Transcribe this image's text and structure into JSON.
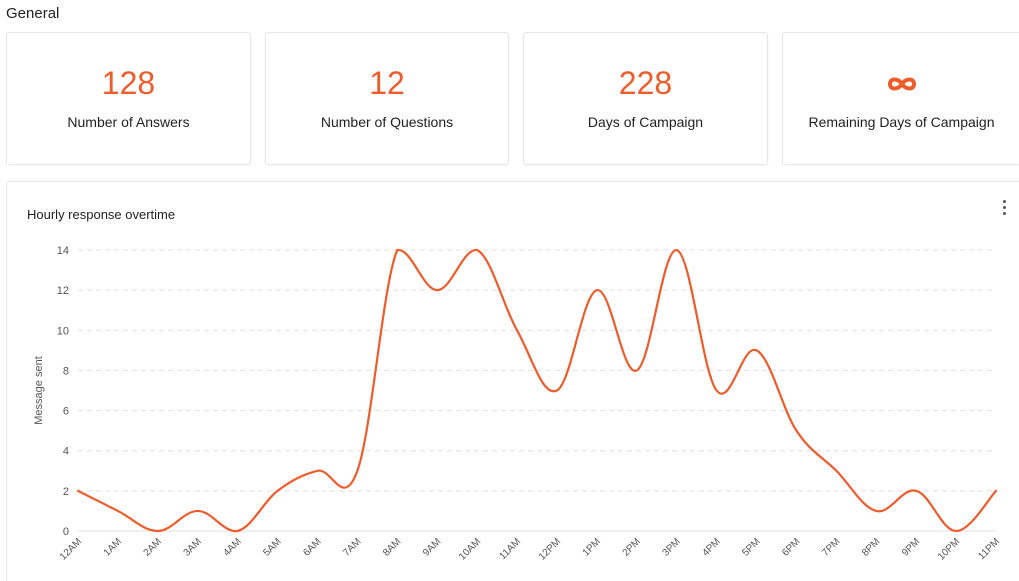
{
  "section": {
    "title": "General"
  },
  "cards": [
    {
      "value": "128",
      "label": "Number of Answers"
    },
    {
      "value": "12",
      "label": "Number of Questions"
    },
    {
      "value": "228",
      "label": "Days of Campaign"
    },
    {
      "value": "",
      "icon": "infinity-icon",
      "label": "Remaining Days of Campaign"
    }
  ],
  "colors": {
    "accent": "#ee5c2b",
    "grid": "#e0e0e0",
    "axis_text": "#555555"
  },
  "chart_card": {
    "title": "Hourly response overtime",
    "menu_icon": "kebab-menu-icon"
  },
  "chart_data": {
    "type": "line",
    "title": "Hourly response overtime",
    "xlabel": "",
    "ylabel": "Message sent",
    "categories": [
      "12AM",
      "1AM",
      "2AM",
      "3AM",
      "4AM",
      "5AM",
      "6AM",
      "7AM",
      "8AM",
      "9AM",
      "10AM",
      "11AM",
      "12PM",
      "1PM",
      "2PM",
      "3PM",
      "4PM",
      "5PM",
      "6PM",
      "7PM",
      "8PM",
      "9PM",
      "10PM",
      "11PM"
    ],
    "series": [
      {
        "values": [
          2,
          1,
          0,
          1,
          0,
          2,
          3,
          3,
          14,
          12,
          14,
          10,
          7,
          12,
          8,
          14,
          7,
          9,
          5,
          3,
          1,
          2,
          0,
          2
        ]
      }
    ],
    "ylim": [
      0,
      14
    ],
    "yticks": [
      "0",
      "2",
      "4",
      "6",
      "8",
      "10",
      "12",
      "14"
    ],
    "grid": true,
    "smooth": true
  }
}
